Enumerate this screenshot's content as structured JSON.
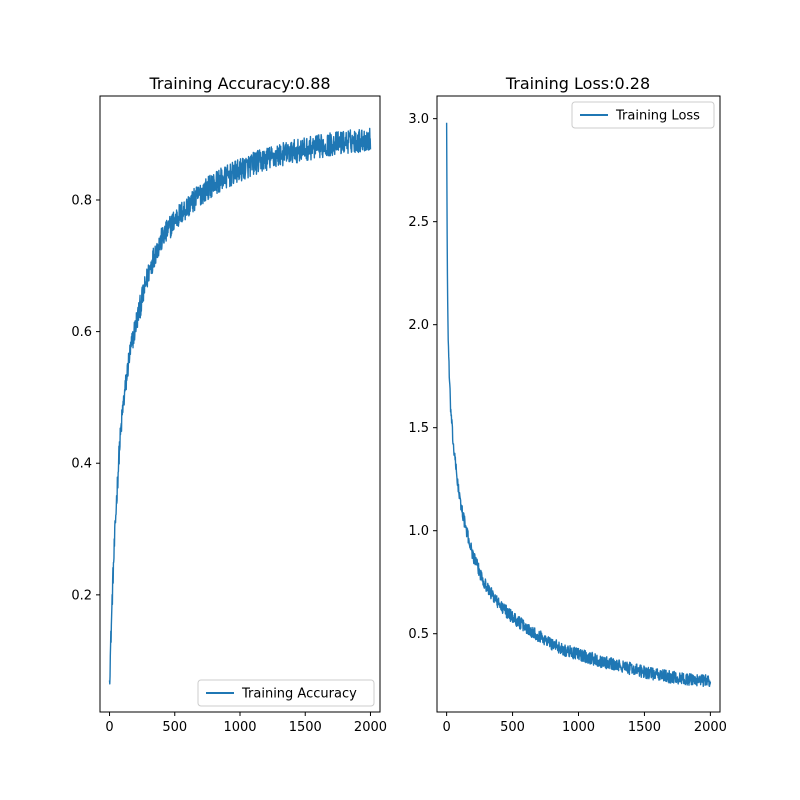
{
  "chart_data": [
    {
      "type": "line",
      "title": "Training Accuracy:0.88",
      "xlabel": "",
      "ylabel": "",
      "xlim": [
        -73,
        2073
      ],
      "ylim": [
        0.022,
        0.958
      ],
      "x_ticks": [
        0,
        500,
        1000,
        1500,
        2000
      ],
      "x_tick_labels": [
        "0",
        "500",
        "1000",
        "1500",
        "2000"
      ],
      "y_ticks": [
        0.2,
        0.4,
        0.6,
        0.8
      ],
      "y_tick_labels": [
        "0.2",
        "0.4",
        "0.6",
        "0.8"
      ],
      "grid": false,
      "legend": {
        "placement": "lower-right"
      },
      "series": [
        {
          "name": "Training Accuracy",
          "color": "#1f77b4",
          "x": [
            0,
            25,
            50,
            75,
            100,
            150,
            200,
            250,
            300,
            350,
            400,
            500,
            600,
            700,
            800,
            900,
            1000,
            1100,
            1200,
            1300,
            1400,
            1500,
            1600,
            1700,
            1800,
            1900,
            2000
          ],
          "y": [
            0.07,
            0.22,
            0.33,
            0.42,
            0.48,
            0.56,
            0.61,
            0.65,
            0.69,
            0.72,
            0.74,
            0.77,
            0.79,
            0.81,
            0.825,
            0.835,
            0.845,
            0.855,
            0.862,
            0.868,
            0.873,
            0.877,
            0.881,
            0.885,
            0.888,
            0.89,
            0.892
          ],
          "noise": 0.018
        }
      ]
    },
    {
      "type": "line",
      "title": "Training Loss:0.28",
      "xlabel": "",
      "ylabel": "",
      "xlim": [
        -73,
        2073
      ],
      "ylim": [
        0.12,
        3.11
      ],
      "x_ticks": [
        0,
        500,
        1000,
        1500,
        2000
      ],
      "x_tick_labels": [
        "0",
        "500",
        "1000",
        "1500",
        "2000"
      ],
      "y_ticks": [
        0.5,
        1.0,
        1.5,
        2.0,
        2.5,
        3.0
      ],
      "y_tick_labels": [
        "0.5",
        "1.0",
        "1.5",
        "2.0",
        "2.5",
        "3.0"
      ],
      "grid": false,
      "legend": {
        "placement": "upper-right"
      },
      "series": [
        {
          "name": "Training Loss",
          "color": "#1f77b4",
          "x": [
            0,
            5,
            10,
            20,
            30,
            50,
            75,
            100,
            150,
            200,
            250,
            300,
            400,
            500,
            600,
            700,
            800,
            900,
            1000,
            1200,
            1400,
            1600,
            1800,
            2000
          ],
          "y": [
            2.98,
            2.3,
            2.0,
            1.75,
            1.6,
            1.42,
            1.28,
            1.15,
            1.0,
            0.88,
            0.8,
            0.73,
            0.64,
            0.58,
            0.53,
            0.49,
            0.45,
            0.42,
            0.4,
            0.36,
            0.33,
            0.3,
            0.28,
            0.27
          ],
          "noise": 0.03
        }
      ]
    }
  ]
}
